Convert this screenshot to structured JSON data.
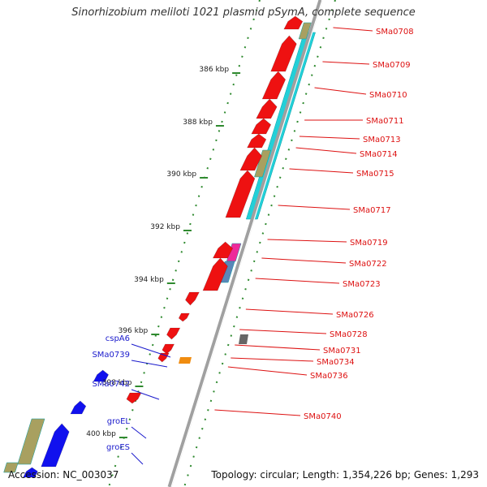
{
  "title": "Sinorhizobium meliloti 1021 plasmid pSymA, complete sequence",
  "footer": {
    "accession": "Accession: NC_003037",
    "topology": "Topology: circular; Length: 1,354,226 bp; Genes: 1,293"
  },
  "colors": {
    "backbone": "#a0a0a0",
    "tick": "#2f8a2f",
    "right_label": "#dd1111",
    "left_label": "#1a1acc",
    "gene_red": "#ee1111",
    "gene_blue": "#1111ee",
    "cyan": "#22d0d8",
    "olive": "#a8a060",
    "magenta": "#ee2a9a",
    "steel": "#5b86b8",
    "orange": "#f08c10",
    "gray": "#666666"
  },
  "scale_labels": [
    "386 kbp",
    "388 kbp",
    "390 kbp",
    "392 kbp",
    "394 kbp",
    "396 kbp",
    "398 kbp",
    "400 kbp"
  ],
  "right_genes": [
    "SMa0708",
    "SMa0709",
    "SMa0710",
    "SMa0711",
    "SMa0713",
    "SMa0714",
    "SMa0715",
    "SMa0717",
    "SMa0719",
    "SMa0722",
    "SMa0723",
    "SMa0726",
    "SMa0728",
    "SMa0731",
    "SMa0734",
    "SMa0736",
    "SMa0740"
  ],
  "left_genes": [
    "cspA6",
    "SMa0739",
    "SMa0742",
    "groEL",
    "groES"
  ]
}
